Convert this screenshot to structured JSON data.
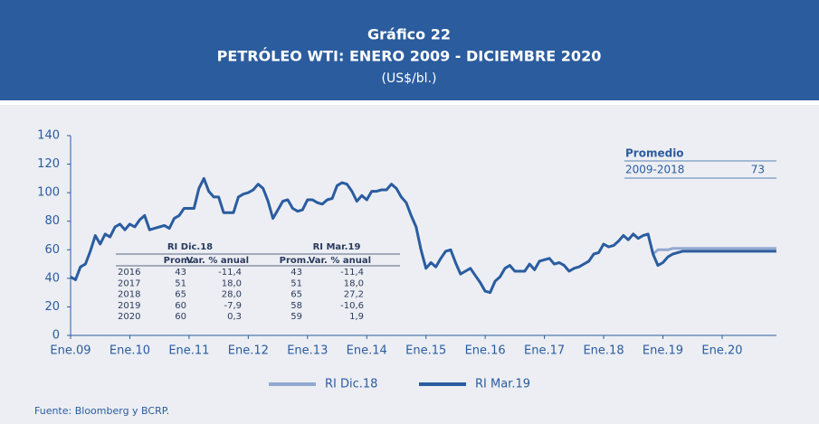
{
  "header": {
    "label": "Gráfico 22"
  },
  "chart_data": {
    "type": "line",
    "title": "PETRÓLEO WTI: ENERO 2009 - DICIEMBRE 2020",
    "subtitle": "(US$/bl.)",
    "categories": [
      "Ene.09",
      null,
      null,
      null,
      null,
      null,
      null,
      null,
      null,
      null,
      null,
      null,
      "Ene.10",
      null,
      null,
      null,
      null,
      null,
      null,
      null,
      null,
      null,
      null,
      null,
      "Ene.11",
      null,
      null,
      null,
      null,
      null,
      null,
      null,
      null,
      null,
      null,
      null,
      "Ene.12",
      null,
      null,
      null,
      null,
      null,
      null,
      null,
      null,
      null,
      null,
      null,
      "Ene.13",
      null,
      null,
      null,
      null,
      null,
      null,
      null,
      null,
      null,
      null,
      null,
      "Ene.14",
      null,
      null,
      null,
      null,
      null,
      null,
      null,
      null,
      null,
      null,
      null,
      "Ene.15",
      null,
      null,
      null,
      null,
      null,
      null,
      null,
      null,
      null,
      null,
      null,
      "Ene.16",
      null,
      null,
      null,
      null,
      null,
      null,
      null,
      null,
      null,
      null,
      null,
      "Ene.17",
      null,
      null,
      null,
      null,
      null,
      null,
      null,
      null,
      null,
      null,
      null,
      "Ene.18",
      null,
      null,
      null,
      null,
      null,
      null,
      null,
      null,
      null,
      null,
      null,
      "Ene.19",
      null,
      null,
      null,
      null,
      null,
      null,
      null,
      null,
      null,
      null,
      null,
      "Ene.20",
      null,
      null,
      null,
      null,
      null,
      null,
      null,
      null,
      null,
      null,
      null
    ],
    "series": [
      {
        "name": "RI Dic.18",
        "color": "#93a9d1",
        "values": [
          null,
          null,
          null,
          null,
          null,
          null,
          null,
          null,
          null,
          null,
          null,
          null,
          null,
          null,
          null,
          null,
          null,
          null,
          null,
          null,
          null,
          null,
          null,
          null,
          null,
          null,
          null,
          null,
          null,
          null,
          null,
          null,
          null,
          null,
          null,
          null,
          null,
          null,
          null,
          null,
          null,
          null,
          null,
          null,
          null,
          null,
          null,
          null,
          null,
          null,
          null,
          null,
          null,
          null,
          null,
          null,
          null,
          null,
          null,
          null,
          null,
          null,
          null,
          null,
          null,
          null,
          null,
          null,
          null,
          null,
          null,
          null,
          null,
          null,
          null,
          null,
          null,
          null,
          null,
          null,
          null,
          null,
          null,
          null,
          null,
          null,
          null,
          null,
          null,
          null,
          null,
          null,
          null,
          null,
          null,
          null,
          null,
          null,
          null,
          null,
          null,
          null,
          null,
          null,
          null,
          null,
          null,
          null,
          null,
          null,
          null,
          null,
          null,
          null,
          null,
          null,
          null,
          null,
          57,
          60,
          60,
          60,
          61,
          61,
          61,
          61,
          61,
          61,
          61,
          61,
          61,
          61,
          61,
          61,
          61,
          61,
          61,
          61,
          61,
          61,
          61,
          61,
          61,
          61
        ]
      },
      {
        "name": "RI Mar.19",
        "color": "#2a5c9f",
        "values": [
          41,
          39,
          48,
          50,
          59,
          70,
          64,
          71,
          69,
          76,
          78,
          74,
          78,
          76,
          81,
          84,
          74,
          75,
          76,
          77,
          75,
          82,
          84,
          89,
          89,
          89,
          103,
          110,
          101,
          97,
          97,
          86,
          86,
          86,
          97,
          99,
          100,
          102,
          106,
          103,
          94,
          82,
          88,
          94,
          95,
          89,
          87,
          88,
          95,
          95,
          93,
          92,
          95,
          96,
          105,
          107,
          106,
          101,
          94,
          98,
          95,
          101,
          101,
          102,
          102,
          106,
          103,
          97,
          93,
          84,
          76,
          60,
          47,
          51,
          48,
          54,
          59,
          60,
          51,
          43,
          45,
          47,
          42,
          37,
          31,
          30,
          38,
          41,
          47,
          49,
          45,
          45,
          45,
          50,
          46,
          52,
          53,
          54,
          50,
          51,
          49,
          45,
          47,
          48,
          50,
          52,
          57,
          58,
          64,
          62,
          63,
          66,
          70,
          67,
          71,
          68,
          70,
          71,
          57,
          49,
          51,
          55,
          57,
          58,
          59,
          59,
          59,
          59,
          59,
          59,
          59,
          59,
          59,
          59,
          59,
          59,
          59,
          59,
          59,
          59,
          59,
          59,
          59,
          59
        ]
      }
    ],
    "ylim": [
      0,
      140
    ],
    "yticks": [
      0,
      20,
      40,
      60,
      80,
      100,
      120,
      140
    ]
  },
  "table": {
    "groups": [
      "RI Dic.18",
      "RI Mar.19"
    ],
    "columns": [
      "Prom.",
      "Var. % anual",
      "Prom.",
      "Var. % anual"
    ],
    "rows": [
      [
        "2016",
        "43",
        "-11,4",
        "43",
        "-11,4"
      ],
      [
        "2017",
        "51",
        "18,0",
        "51",
        "18,0"
      ],
      [
        "2018",
        "65",
        "28,0",
        "65",
        "27,2"
      ],
      [
        "2019",
        "60",
        "-7,9",
        "58",
        "-10,6"
      ],
      [
        "2020",
        "60",
        "0,3",
        "59",
        "1,9"
      ]
    ]
  },
  "average": {
    "title": "Promedio",
    "period": "2009-2018",
    "value": "73"
  },
  "source": "Fuente: Bloomberg y BCRP."
}
